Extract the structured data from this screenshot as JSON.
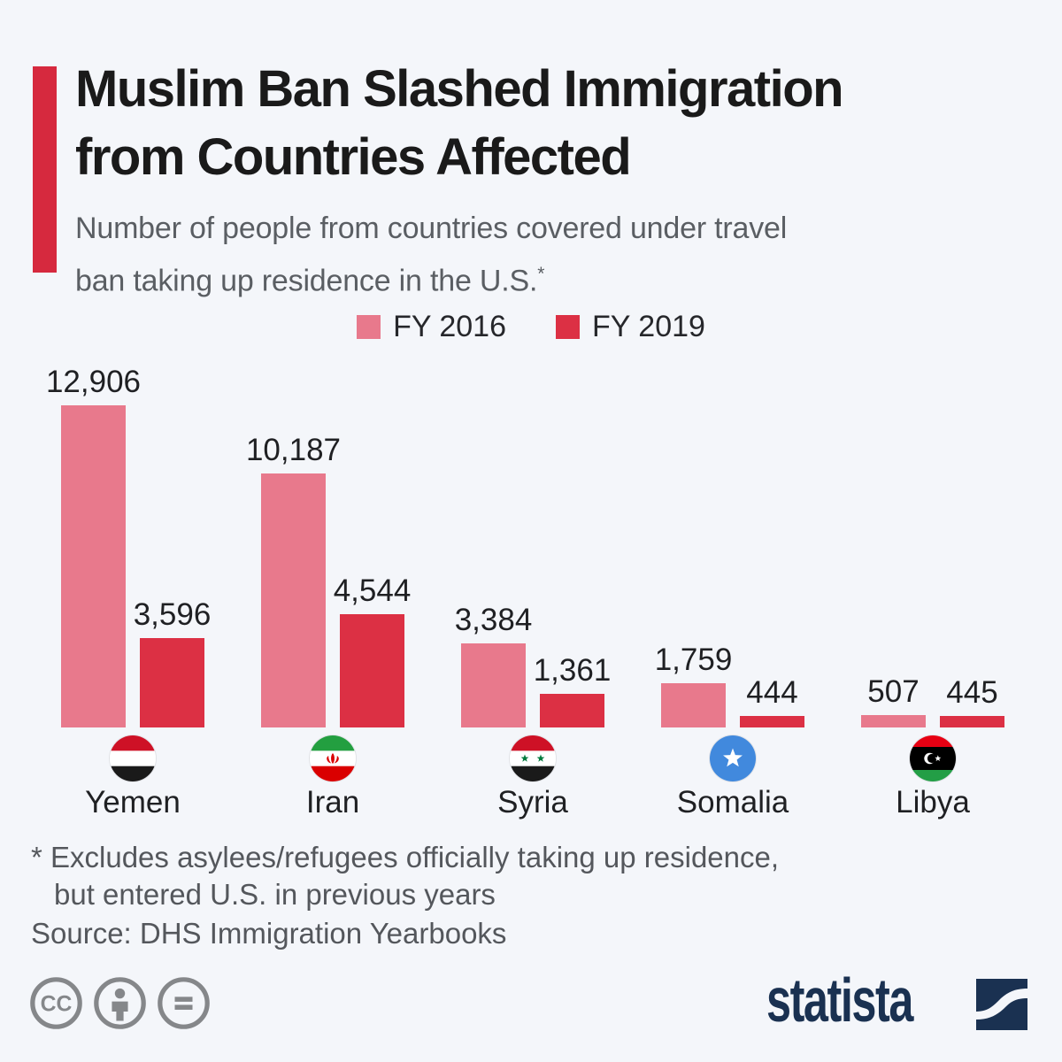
{
  "header": {
    "title_line1": "Muslim Ban Slashed Immigration",
    "title_line2": "from Countries Affected",
    "subtitle_line1": "Number of people from countries covered under travel",
    "subtitle_line2": "ban taking up residence in the U.S.",
    "footnote_marker": "*"
  },
  "legend": [
    {
      "label": "FY 2016",
      "color": "#E8798C"
    },
    {
      "label": "FY 2019",
      "color": "#DC3044"
    }
  ],
  "chart_data": {
    "type": "bar",
    "categories": [
      "Yemen",
      "Iran",
      "Syria",
      "Somalia",
      "Libya"
    ],
    "series": [
      {
        "name": "FY 2016",
        "color": "#E8798C",
        "values": [
          12906,
          10187,
          3384,
          1759,
          507
        ]
      },
      {
        "name": "FY 2019",
        "color": "#DC3044",
        "values": [
          3596,
          4544,
          1361,
          444,
          445
        ]
      }
    ],
    "value_labels": [
      [
        "12,906",
        "10,187",
        "3,384",
        "1,759",
        "507"
      ],
      [
        "3,596",
        "4,544",
        "1,361",
        "444",
        "445"
      ]
    ],
    "flags": [
      "yemen-flag",
      "iran-flag",
      "syria-flag",
      "somalia-flag",
      "libya-flag"
    ],
    "title": "Muslim Ban Slashed Immigration from Countries Affected",
    "xlabel": "",
    "ylabel": "",
    "ylim": [
      0,
      12906
    ],
    "grid": false,
    "legend_position": "top"
  },
  "footnote": {
    "line1": "* Excludes asylees/refugees officially taking up residence,",
    "line2": "but entered U.S. in previous years",
    "source": "Source: DHS Immigration Yearbooks"
  },
  "footer": {
    "license_icons": [
      "cc-icon",
      "attribution-icon",
      "no-derivatives-icon"
    ],
    "brand": "statista"
  },
  "colors": {
    "background": "#F4F6FA",
    "accent_bar": "#D6293E",
    "fy2016": "#E8798C",
    "fy2019": "#DC3044",
    "title": "#1A1A1A",
    "subtitle_gray": "#5A5E63",
    "footnote_gray": "#54575C",
    "icon_gray": "#85878A",
    "brand_navy": "#1A3151"
  }
}
